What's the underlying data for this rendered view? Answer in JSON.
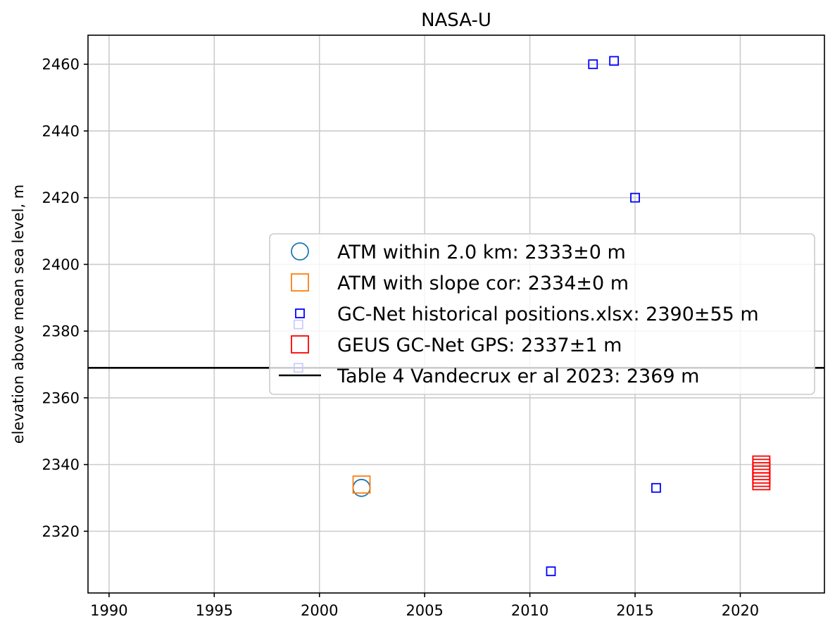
{
  "chart_data": {
    "type": "scatter",
    "title": "NASA-U",
    "xlabel": "",
    "ylabel": "elevation above mean sea level, m",
    "xlim": [
      1989,
      2024
    ],
    "ylim": [
      2301.5,
      2468.7
    ],
    "x_ticks": [
      1990,
      1995,
      2000,
      2005,
      2010,
      2015,
      2020
    ],
    "y_ticks": [
      2320,
      2340,
      2360,
      2380,
      2400,
      2420,
      2440,
      2460
    ],
    "grid": true,
    "legend_placement": "center-right",
    "series": [
      {
        "name": "ATM within 2.0 km: 2333±0 m",
        "marker": "circle-open",
        "color": "#1f77b4",
        "points": [
          [
            2002.0,
            2333
          ]
        ]
      },
      {
        "name": "ATM with slope cor: 2334±0 m",
        "marker": "square-open-large",
        "color": "#ff7f0e",
        "points": [
          [
            2002.0,
            2334
          ]
        ]
      },
      {
        "name": "GC-Net historical positions.xlsx: 2390±55 m",
        "marker": "square-open-small",
        "color": "#0000ff",
        "points": [
          [
            1999.0,
            2382
          ],
          [
            1999.0,
            2369
          ],
          [
            2011.0,
            2308
          ],
          [
            2013.0,
            2460
          ],
          [
            2014.0,
            2461
          ],
          [
            2015.0,
            2420
          ],
          [
            2016.0,
            2333
          ]
        ]
      },
      {
        "name": "GEUS GC-Net GPS: 2337±1 m",
        "marker": "square-open-large",
        "color": "#ff0000",
        "points": [
          [
            2021.0,
            2335
          ],
          [
            2021.0,
            2336
          ],
          [
            2021.0,
            2337
          ],
          [
            2021.0,
            2338
          ],
          [
            2021.0,
            2339
          ],
          [
            2021.0,
            2340
          ]
        ]
      }
    ],
    "reference_lines": [
      {
        "name": "Table 4 Vandecrux er al 2023: 2369 m",
        "orientation": "horizontal",
        "y": 2369,
        "color": "#000000"
      }
    ]
  }
}
